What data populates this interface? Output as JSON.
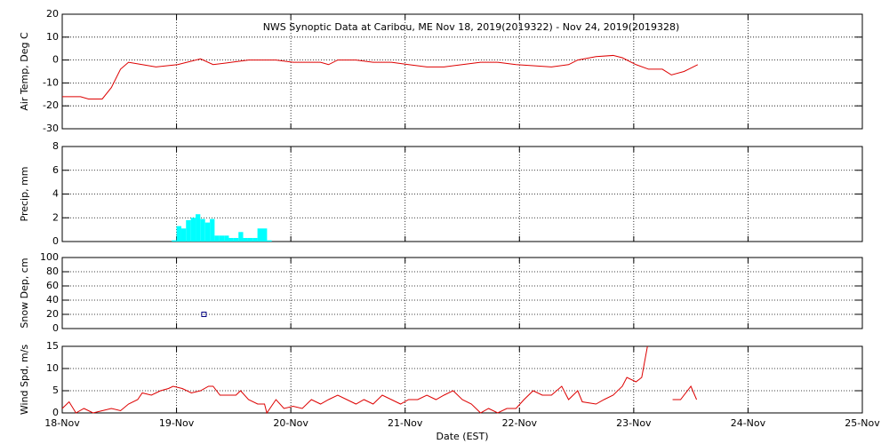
{
  "chart_data": [
    {
      "type": "line",
      "title": "NWS Synoptic Data at Caribou, ME   Nov 18, 2019(2019322) - Nov 24, 2019(2019328)",
      "ylabel": "Air Temp, Deg C",
      "color": "#dd0000",
      "grid": true,
      "xlim": [
        0,
        7
      ],
      "ylim": [
        -30,
        20
      ],
      "yticks": [
        -30,
        -20,
        -10,
        0,
        10,
        20
      ],
      "x": [
        0,
        0.16,
        0.23,
        0.35,
        0.43,
        0.51,
        0.58,
        0.7,
        0.82,
        1.01,
        1.21,
        1.32,
        1.48,
        1.63,
        1.87,
        2.02,
        2.26,
        2.33,
        2.41,
        2.57,
        2.72,
        2.88,
        3.03,
        3.19,
        3.34,
        3.5,
        3.66,
        3.81,
        3.97,
        4.12,
        4.28,
        4.43,
        4.51,
        4.67,
        4.82,
        4.9,
        5.02,
        5.13,
        5.25,
        5.33,
        5.44,
        5.48,
        5.56
      ],
      "values": [
        -16,
        -16,
        -17,
        -17,
        -12,
        -4,
        -1,
        -2,
        -3,
        -2,
        0.5,
        -2,
        -1,
        0,
        0,
        -1,
        -1,
        -2,
        0,
        0,
        -1,
        -1,
        -2,
        -3,
        -3,
        -2,
        -1,
        -1,
        -2,
        -2.5,
        -3,
        -2,
        0,
        1.5,
        2,
        1,
        -2,
        -4,
        -4,
        -6.5,
        -5,
        -4,
        -2
      ]
    },
    {
      "type": "histogram",
      "ylabel": "Precip, mm",
      "color": "#00ffff",
      "grid": true,
      "xlim": [
        0,
        7
      ],
      "ylim": [
        0,
        8
      ],
      "yticks": [
        0,
        2,
        4,
        6,
        8
      ],
      "bins": [
        0.958,
        1,
        1.042,
        1.083,
        1.125,
        1.167,
        1.208,
        1.25,
        1.292,
        1.333,
        1.375,
        1.417,
        1.458,
        1.5,
        1.542,
        1.583,
        1.625,
        1.667,
        1.708,
        1.75,
        1.792,
        1.833
      ],
      "values": [
        0.1,
        1.3,
        1.1,
        1.8,
        2.0,
        2.3,
        1.9,
        1.6,
        1.9,
        0.5,
        0.5,
        0.5,
        0.3,
        0.3,
        0.8,
        0.3,
        0.3,
        0.3,
        1.1,
        1.1,
        0.1
      ]
    },
    {
      "type": "scatter",
      "ylabel": "Snow Dep, cm",
      "color": "#000080",
      "grid": true,
      "xlim": [
        0,
        7
      ],
      "ylim": [
        0,
        100
      ],
      "yticks": [
        0,
        20,
        40,
        60,
        80,
        100
      ],
      "x": [
        1.24
      ],
      "values": [
        20
      ]
    },
    {
      "type": "line",
      "ylabel": "Wind Spd, m/s",
      "xlabel": "Date (EST)",
      "color": "#dd0000",
      "grid": true,
      "xlim": [
        0,
        7
      ],
      "ylim": [
        0,
        15
      ],
      "yticks": [
        0,
        5,
        10,
        15
      ],
      "xticks": [
        {
          "value": 0,
          "label": "18-Nov"
        },
        {
          "value": 1,
          "label": "19-Nov"
        },
        {
          "value": 2,
          "label": "20-Nov"
        },
        {
          "value": 3,
          "label": "21-Nov"
        },
        {
          "value": 4,
          "label": "22-Nov"
        },
        {
          "value": 5,
          "label": "23-Nov"
        },
        {
          "value": 6,
          "label": "24-Nov"
        },
        {
          "value": 7,
          "label": "25-Nov"
        }
      ],
      "x": [
        0,
        0.06,
        0.12,
        0.19,
        0.27,
        0.35,
        0.43,
        0.51,
        0.58,
        0.66,
        0.7,
        0.78,
        0.86,
        0.93,
        0.97,
        1.05,
        1.13,
        1.21,
        1.28,
        1.32,
        1.38,
        1.52,
        1.56,
        1.63,
        1.71,
        1.77,
        1.79,
        1.87,
        1.94,
        2.02,
        2.1,
        2.18,
        2.26,
        2.33,
        2.41,
        2.49,
        2.57,
        2.64,
        2.72,
        2.8,
        2.88,
        2.96,
        3.03,
        3.11,
        3.19,
        3.27,
        3.34,
        3.42,
        3.5,
        3.58,
        3.66,
        3.73,
        3.81,
        3.89,
        3.97,
        4.04,
        4.12,
        4.2,
        4.28,
        4.37,
        4.43,
        4.51,
        4.55,
        4.67,
        4.74,
        4.82,
        4.9,
        4.94,
        5.02,
        5.07,
        5.12,
        5.3,
        5.34,
        5.41,
        5.5,
        5.55
      ],
      "values": [
        1,
        2.5,
        0,
        1,
        0,
        0.5,
        1,
        0.5,
        2,
        3,
        4.5,
        4,
        5,
        5.5,
        6,
        5.5,
        4.5,
        5,
        6,
        6,
        4,
        4,
        5,
        3,
        2,
        2,
        0,
        3,
        1,
        1.5,
        1,
        3,
        2,
        3,
        4,
        3,
        2,
        3,
        2,
        4,
        3,
        2,
        3,
        3,
        4,
        3,
        4,
        5,
        3,
        2,
        0,
        1,
        0,
        1,
        1,
        3,
        5,
        4,
        4,
        6,
        3,
        5,
        2.5,
        2,
        3,
        4,
        6,
        8,
        7,
        8,
        15,
        null,
        3,
        3,
        6,
        3
      ]
    }
  ]
}
